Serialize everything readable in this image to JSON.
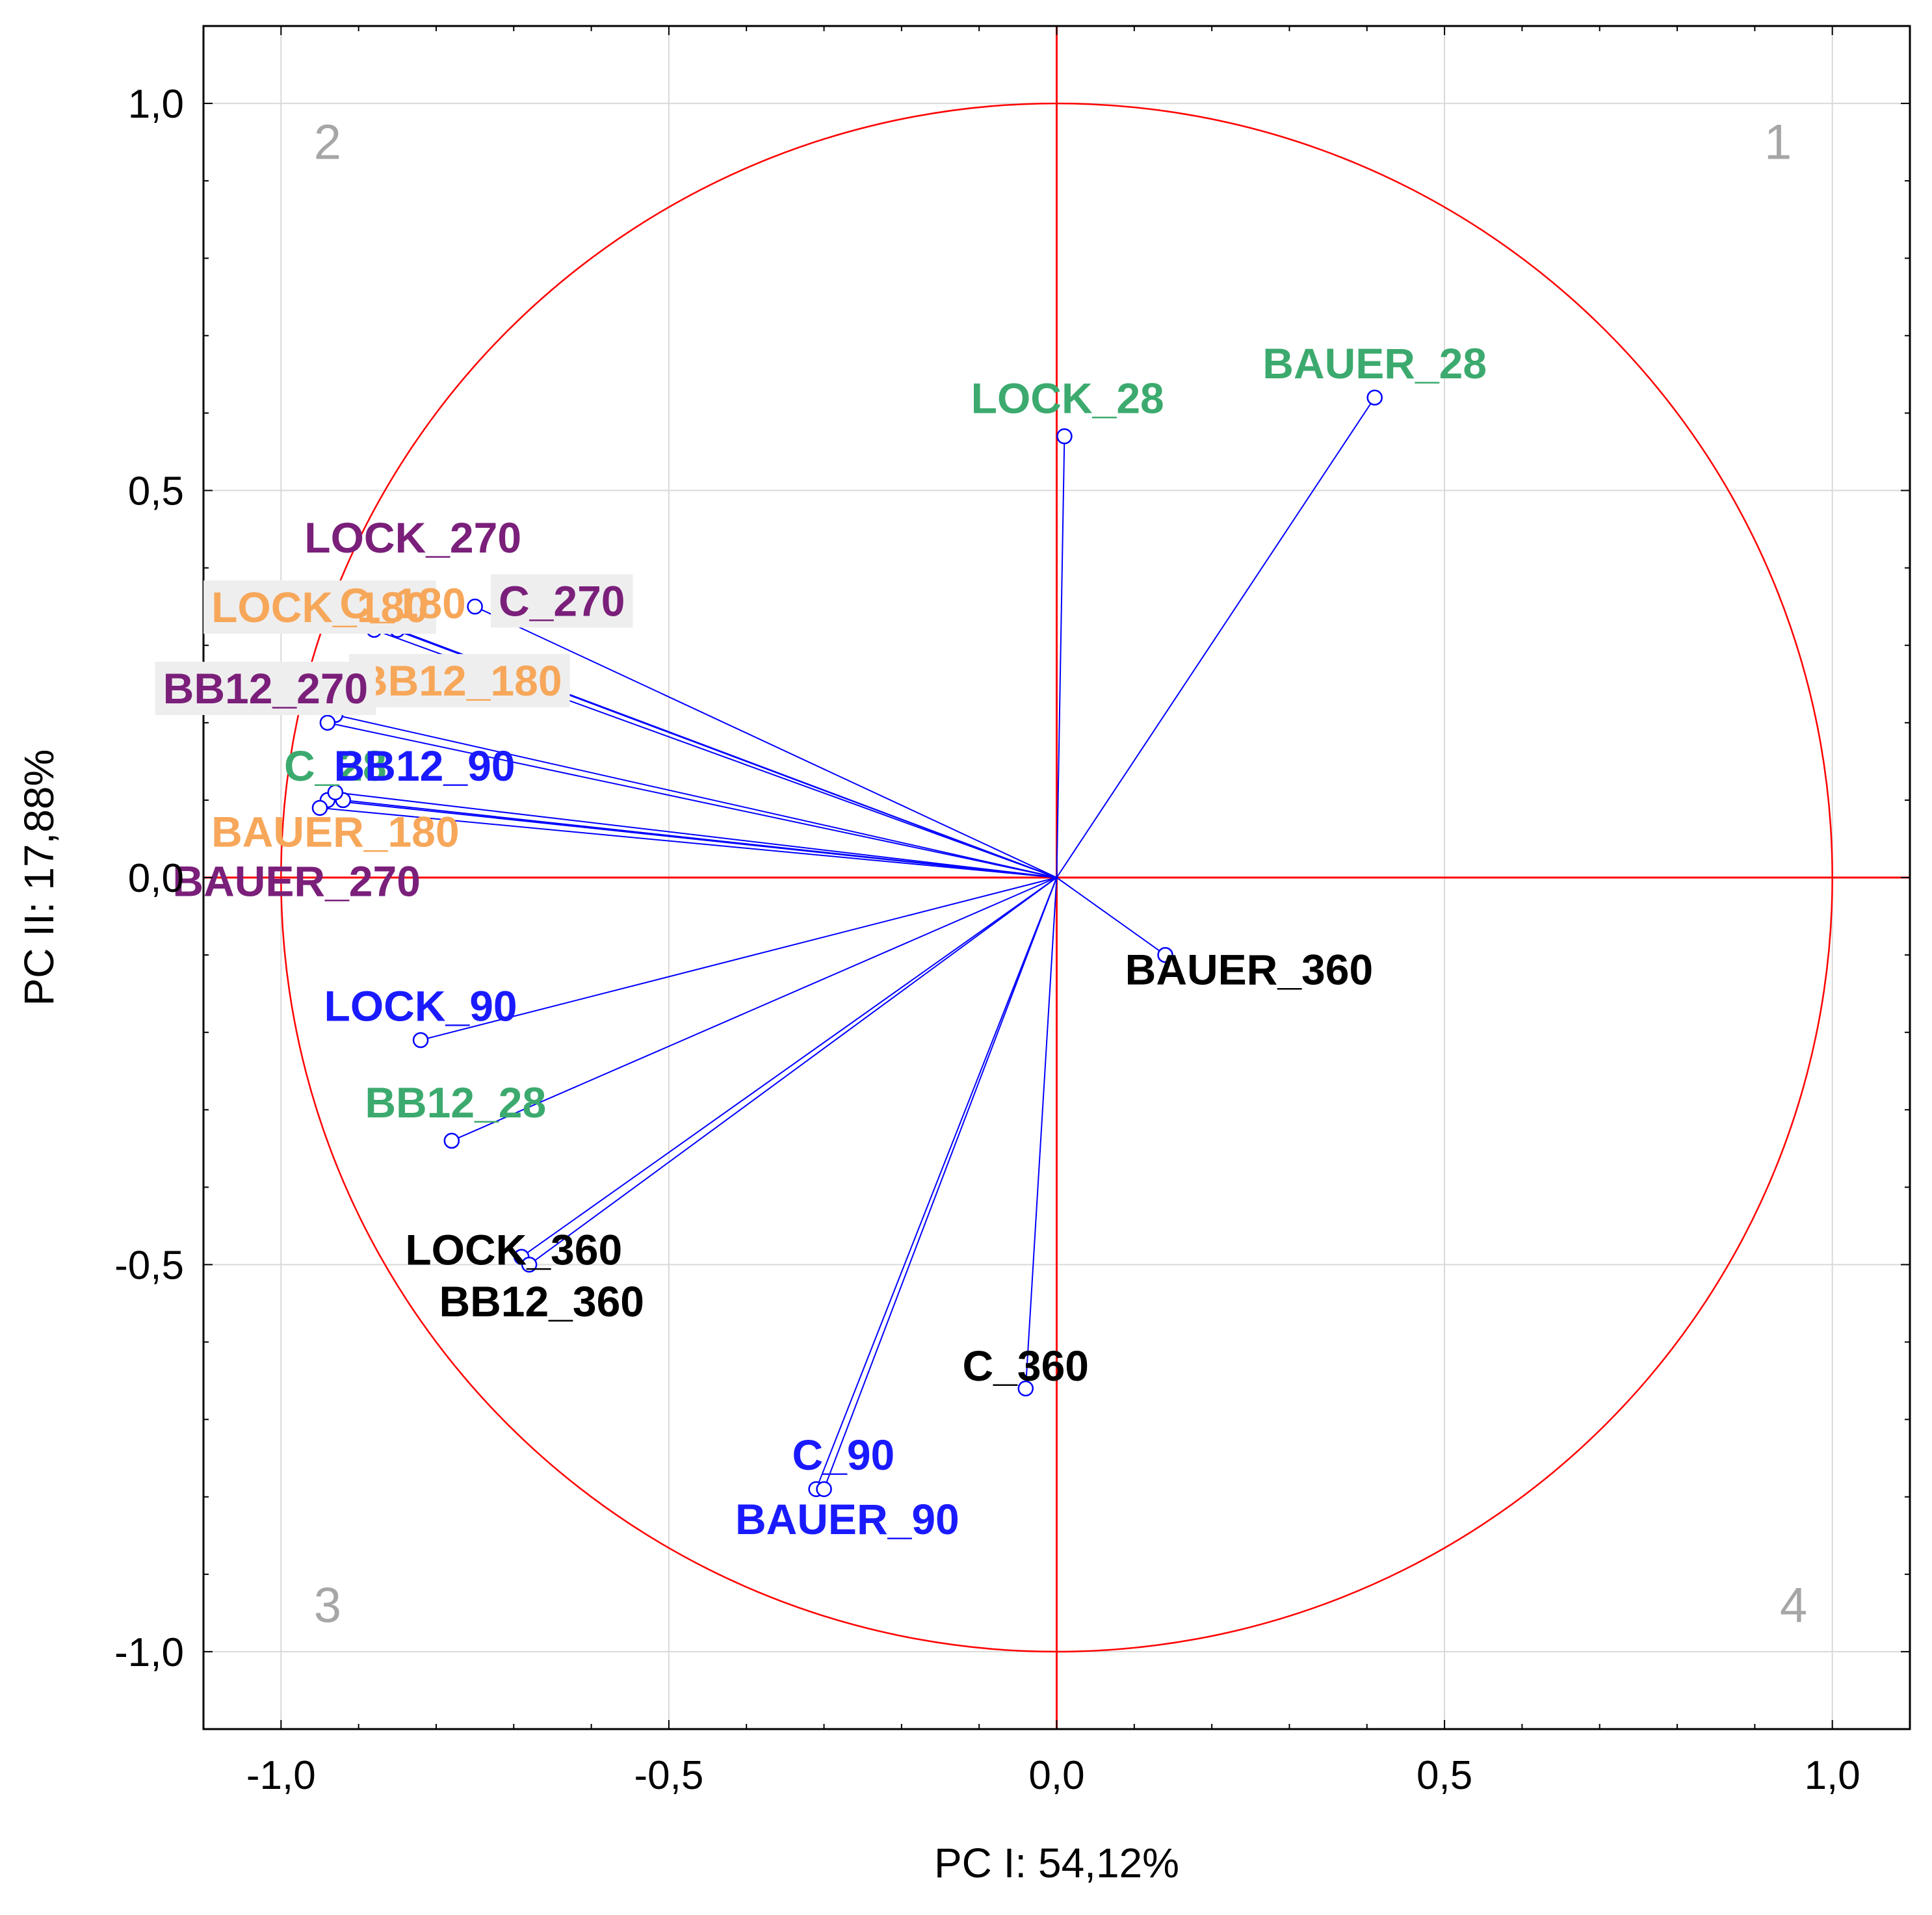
{
  "chart_data": {
    "type": "scatter",
    "subtype": "pca-loading-plot",
    "title": "",
    "xlabel": "PC I: 54,12%",
    "ylabel": "PC II: 17,88%",
    "xlim": [
      -1.1,
      1.1
    ],
    "ylim": [
      -1.1,
      1.1
    ],
    "xticks": [
      -1.0,
      -0.5,
      0.0,
      0.5,
      1.0
    ],
    "yticks": [
      -1.0,
      -0.5,
      0.0,
      0.5,
      1.0
    ],
    "xtick_labels": [
      "-1,0",
      "-0,5",
      "0,0",
      "0,5",
      "1,0"
    ],
    "ytick_labels": [
      "-1,0",
      "-0,5",
      "0,0",
      "0,5",
      "1,0"
    ],
    "grid": true,
    "unit_circle": true,
    "quadrant_labels": [
      "1",
      "2",
      "3",
      "4"
    ],
    "colors": {
      "axis_lines": "#ff0000",
      "circle": "#ff0000",
      "vectors": "#0000ff",
      "grid": "#d9d9d9",
      "quadrant_text": "#a6a6a6",
      "label_box": "#eeeeee"
    },
    "series": [
      {
        "name": "28",
        "color": "#3caa6e",
        "points": [
          {
            "label": "LOCK_28",
            "x": 0.01,
            "y": 0.57
          },
          {
            "label": "BAUER_28",
            "x": 0.41,
            "y": 0.62
          },
          {
            "label": "C_28",
            "x": -0.94,
            "y": 0.1
          },
          {
            "label": "BB12_28",
            "x": -0.78,
            "y": -0.34
          }
        ]
      },
      {
        "name": "90",
        "color": "#1a1aff",
        "points": [
          {
            "label": "BB12_90",
            "x": -0.92,
            "y": 0.1
          },
          {
            "label": "LOCK_90",
            "x": -0.82,
            "y": -0.21
          },
          {
            "label": "C_90",
            "x": -0.31,
            "y": -0.79
          },
          {
            "label": "BAUER_90",
            "x": -0.3,
            "y": -0.79
          }
        ]
      },
      {
        "name": "180",
        "color": "#f7a75a",
        "points": [
          {
            "label": "LOCK_180",
            "x": -0.88,
            "y": 0.32
          },
          {
            "label": "C_180",
            "x": -0.85,
            "y": 0.32
          },
          {
            "label": "BB12_180",
            "x": -0.93,
            "y": 0.21
          },
          {
            "label": "BAUER_180",
            "x": -0.95,
            "y": 0.09
          }
        ]
      },
      {
        "name": "270",
        "color": "#7a1f7a",
        "points": [
          {
            "label": "LOCK_270",
            "x": -0.88,
            "y": 0.33
          },
          {
            "label": "C_270",
            "x": -0.75,
            "y": 0.35
          },
          {
            "label": "BB12_270",
            "x": -0.94,
            "y": 0.2
          },
          {
            "label": "BAUER_270",
            "x": -0.93,
            "y": 0.11
          }
        ]
      },
      {
        "name": "360",
        "color": "#000000",
        "points": [
          {
            "label": "BAUER_360",
            "x": 0.14,
            "y": -0.1
          },
          {
            "label": "LOCK_360",
            "x": -0.69,
            "y": -0.49
          },
          {
            "label": "BB12_360",
            "x": -0.68,
            "y": -0.5
          },
          {
            "label": "C_360",
            "x": -0.04,
            "y": -0.66
          }
        ]
      }
    ],
    "label_layout": [
      {
        "label": "LOCK_28",
        "lx": 0.014,
        "ly": 0.6,
        "anchor": "middle",
        "box": false
      },
      {
        "label": "BAUER_28",
        "lx": 0.41,
        "ly": 0.645,
        "anchor": "middle",
        "box": false
      },
      {
        "label": "C_28",
        "lx": -0.93,
        "ly": 0.125,
        "anchor": "middle",
        "box": false
      },
      {
        "label": "BB12_28",
        "lx": -0.775,
        "ly": -0.31,
        "anchor": "middle",
        "box": false
      },
      {
        "label": "BB12_90",
        "lx": -0.815,
        "ly": 0.125,
        "anchor": "middle",
        "box": false
      },
      {
        "label": "LOCK_90",
        "lx": -0.82,
        "ly": -0.185,
        "anchor": "middle",
        "box": false
      },
      {
        "label": "C_90",
        "lx": -0.275,
        "ly": -0.765,
        "anchor": "middle",
        "box": false
      },
      {
        "label": "BAUER_90",
        "lx": -0.27,
        "ly": -0.848,
        "anchor": "middle",
        "box": false
      },
      {
        "label": "LOCK_180",
        "lx": -0.95,
        "ly": 0.33,
        "anchor": "middle",
        "box": true
      },
      {
        "label": "C_180",
        "lx": -0.843,
        "ly": 0.335,
        "anchor": "middle",
        "box": false
      },
      {
        "label": "BB12_180",
        "lx": -0.77,
        "ly": 0.235,
        "anchor": "middle",
        "box": true
      },
      {
        "label": "BAUER_180",
        "lx": -0.93,
        "ly": 0.04,
        "anchor": "middle",
        "box": false
      },
      {
        "label": "LOCK_270",
        "lx": -0.83,
        "ly": 0.42,
        "anchor": "middle",
        "box": false
      },
      {
        "label": "C_270",
        "lx": -0.638,
        "ly": 0.338,
        "anchor": "middle",
        "box": true
      },
      {
        "label": "BB12_270",
        "lx": -1.02,
        "ly": 0.225,
        "anchor": "middle",
        "box": true
      },
      {
        "label": "BAUER_270",
        "lx": -0.98,
        "ly": -0.024,
        "anchor": "middle",
        "box": false
      },
      {
        "label": "BAUER_360",
        "lx": 0.248,
        "ly": -0.138,
        "anchor": "middle",
        "box": false
      },
      {
        "label": "LOCK_360",
        "lx": -0.7,
        "ly": -0.5,
        "anchor": "middle",
        "box": false
      },
      {
        "label": "BB12_360",
        "lx": -0.664,
        "ly": -0.567,
        "anchor": "middle",
        "box": false
      },
      {
        "label": "C_360",
        "lx": -0.04,
        "ly": -0.65,
        "anchor": "middle",
        "box": false
      }
    ]
  }
}
